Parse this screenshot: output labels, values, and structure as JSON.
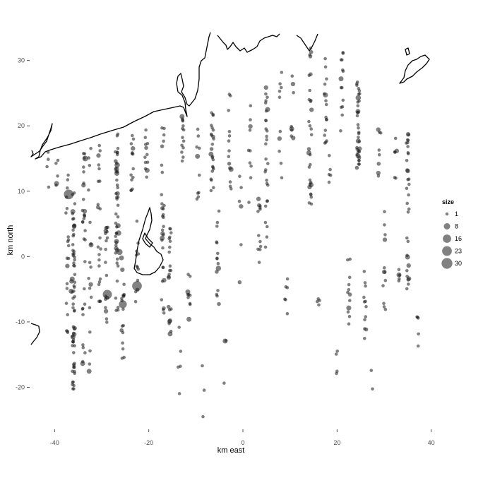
{
  "chart_data": {
    "type": "scatter",
    "title": "",
    "xlabel": "km east",
    "ylabel": "km north",
    "xlim": [
      -45,
      40.5
    ],
    "ylim": [
      -26,
      34.5
    ],
    "x_ticks": [
      -40,
      -20,
      0,
      20,
      40
    ],
    "y_ticks": [
      -20,
      -10,
      0,
      10,
      20,
      30
    ],
    "x_tick_labels": [
      "-40",
      "-20",
      "0",
      "20",
      "40"
    ],
    "y_tick_labels": [
      "-20",
      "-10",
      "0",
      "10",
      "20",
      "30"
    ],
    "grid": false,
    "point_color": "#1a1a1a",
    "point_opacity": 0.55,
    "coast_color": "#000000",
    "legend": {
      "title": "size",
      "position": "right",
      "sizes": [
        1,
        8,
        16,
        23,
        30
      ],
      "labels": [
        "1",
        "8",
        "16",
        "23",
        "30"
      ]
    },
    "transects": [
      {
        "x": -41.5,
        "y_range": [
          9.5,
          16
        ],
        "n": 4
      },
      {
        "x": -39.5,
        "y_range": [
          9.5,
          15.5
        ],
        "n": 5
      },
      {
        "x": -37.3,
        "y_range": [
          -12,
          16
        ],
        "n": 20
      },
      {
        "x": -36.0,
        "y_range": [
          -20.5,
          10
        ],
        "n": 65
      },
      {
        "x": -33.8,
        "y_range": [
          -16.5,
          16
        ],
        "n": 30
      },
      {
        "x": -32.5,
        "y_range": [
          -20,
          19
        ],
        "n": 18
      },
      {
        "x": -30.5,
        "y_range": [
          -7,
          18
        ],
        "n": 22
      },
      {
        "x": -29.0,
        "y_range": [
          -12,
          6.5
        ],
        "n": 18
      },
      {
        "x": -26.8,
        "y_range": [
          -8.5,
          19
        ],
        "n": 45
      },
      {
        "x": -25.5,
        "y_range": [
          -16,
          1
        ],
        "n": 16
      },
      {
        "x": -23.5,
        "y_range": [
          10,
          20
        ],
        "n": 14
      },
      {
        "x": -22.5,
        "y_range": [
          -8,
          7
        ],
        "n": 12
      },
      {
        "x": -20.5,
        "y_range": [
          12,
          20
        ],
        "n": 12
      },
      {
        "x": -17.0,
        "y_range": [
          -10,
          20.5
        ],
        "n": 30
      },
      {
        "x": -15.5,
        "y_range": [
          -12,
          7
        ],
        "n": 22
      },
      {
        "x": -13.5,
        "y_range": [
          -21,
          -10
        ],
        "n": 5
      },
      {
        "x": -12.8,
        "y_range": [
          12.5,
          22
        ],
        "n": 14
      },
      {
        "x": -11.5,
        "y_range": [
          -10.5,
          1
        ],
        "n": 10
      },
      {
        "x": -9.5,
        "y_range": [
          8,
          22
        ],
        "n": 10
      },
      {
        "x": -8.5,
        "y_range": [
          -25,
          -14
        ],
        "n": 3
      },
      {
        "x": -6.5,
        "y_range": [
          9.5,
          23
        ],
        "n": 24
      },
      {
        "x": -5.3,
        "y_range": [
          -8,
          8
        ],
        "n": 14
      },
      {
        "x": -3.8,
        "y_range": [
          -25,
          -12
        ],
        "n": 3
      },
      {
        "x": -2.8,
        "y_range": [
          9,
          25
        ],
        "n": 14
      },
      {
        "x": -0.5,
        "y_range": [
          -17.5,
          14
        ],
        "n": 6
      },
      {
        "x": 1.5,
        "y_range": [
          8,
          25
        ],
        "n": 10
      },
      {
        "x": 3.5,
        "y_range": [
          -2,
          10
        ],
        "n": 12
      },
      {
        "x": 5.0,
        "y_range": [
          1,
          27
        ],
        "n": 28
      },
      {
        "x": 8.0,
        "y_range": [
          12,
          28.5
        ],
        "n": 10
      },
      {
        "x": 9.2,
        "y_range": [
          -13,
          -2
        ],
        "n": 6
      },
      {
        "x": 10.5,
        "y_range": [
          18,
          29
        ],
        "n": 8
      },
      {
        "x": 14.3,
        "y_range": [
          8,
          32
        ],
        "n": 30
      },
      {
        "x": 16.0,
        "y_range": [
          -8,
          -4
        ],
        "n": 4
      },
      {
        "x": 17.5,
        "y_range": [
          17,
          31
        ],
        "n": 16
      },
      {
        "x": 18.5,
        "y_range": [
          11,
          16
        ],
        "n": 5
      },
      {
        "x": 20.0,
        "y_range": [
          -18,
          -12
        ],
        "n": 4
      },
      {
        "x": 21.0,
        "y_range": [
          19,
          32
        ],
        "n": 14
      },
      {
        "x": 22.5,
        "y_range": [
          -10.5,
          1
        ],
        "n": 12
      },
      {
        "x": 24.5,
        "y_range": [
          13,
          27
        ],
        "n": 34
      },
      {
        "x": 26.0,
        "y_range": [
          -14,
          -1
        ],
        "n": 12
      },
      {
        "x": 27.5,
        "y_range": [
          -21,
          -14
        ],
        "n": 2
      },
      {
        "x": 29.0,
        "y_range": [
          12,
          21
        ],
        "n": 8
      },
      {
        "x": 30.0,
        "y_range": [
          -8.5,
          7
        ],
        "n": 12
      },
      {
        "x": 32.5,
        "y_range": [
          12,
          18.5
        ],
        "n": 6
      },
      {
        "x": 33.0,
        "y_range": [
          -5,
          -1
        ],
        "n": 5
      },
      {
        "x": 35.0,
        "y_range": [
          -5,
          19
        ],
        "n": 30
      },
      {
        "x": 37.2,
        "y_range": [
          -15,
          -9
        ],
        "n": 5
      }
    ],
    "large_points": [
      {
        "x": -37.0,
        "y": 9.5,
        "size": 23
      },
      {
        "x": -33.5,
        "y": 15.0,
        "size": 6
      },
      {
        "x": -36.5,
        "y": -5.3,
        "size": 4
      },
      {
        "x": -36.4,
        "y": -3.8,
        "size": 3
      },
      {
        "x": -26.7,
        "y": 14.0,
        "size": 5
      },
      {
        "x": -26.4,
        "y": 3.6,
        "size": 5
      },
      {
        "x": -26.2,
        "y": 0.7,
        "size": 7
      },
      {
        "x": -25.8,
        "y": -0.2,
        "size": 4
      },
      {
        "x": -25.6,
        "y": -2.0,
        "size": 3
      },
      {
        "x": -25.5,
        "y": -7.3,
        "size": 14
      },
      {
        "x": -28.8,
        "y": -5.8,
        "size": 20
      },
      {
        "x": -22.5,
        "y": -4.5,
        "size": 23
      },
      {
        "x": -5.2,
        "y": -1.8,
        "size": 5
      },
      {
        "x": 24.5,
        "y": 24.3,
        "size": 5
      },
      {
        "x": 24.8,
        "y": 16.5,
        "size": 3
      },
      {
        "x": 35.1,
        "y": 18.7,
        "size": 3
      }
    ]
  }
}
